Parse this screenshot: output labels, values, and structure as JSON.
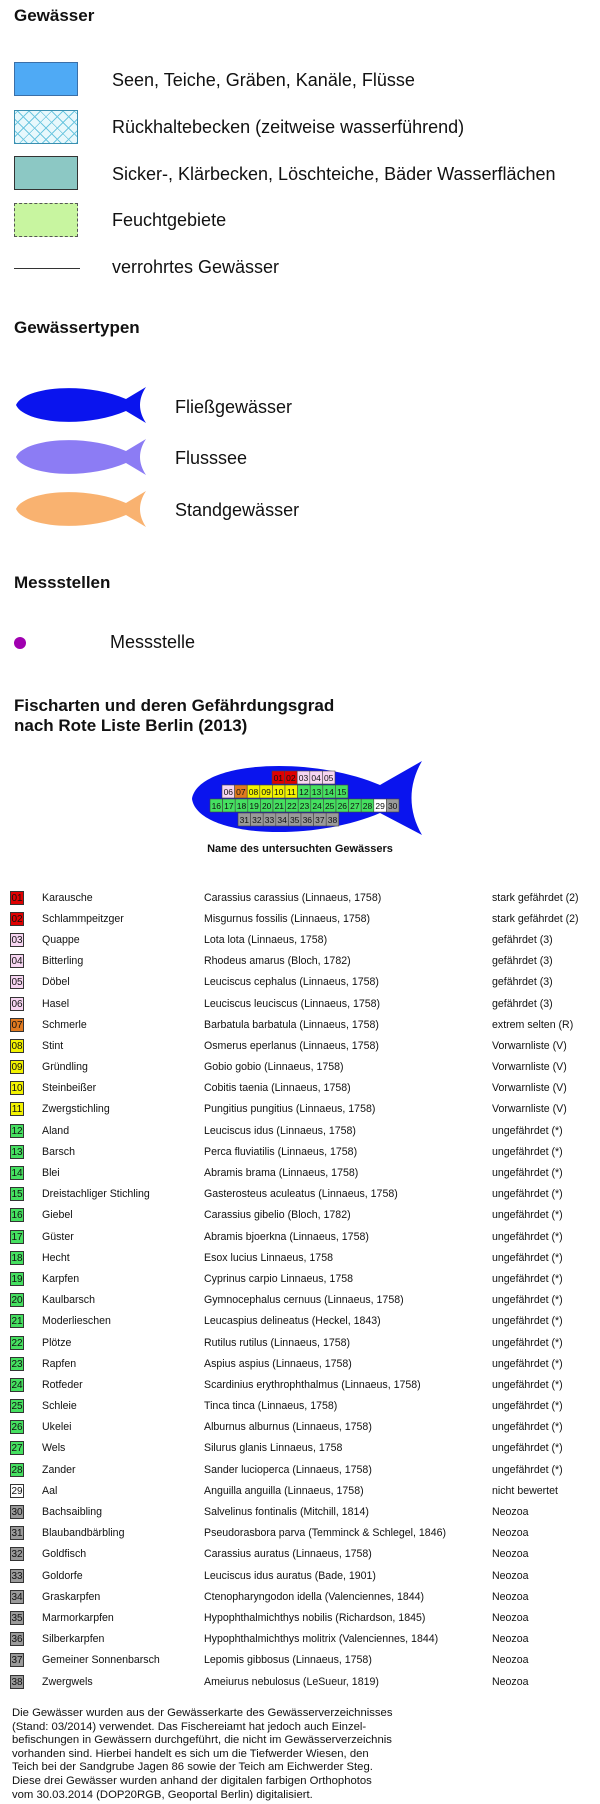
{
  "sections": {
    "waters_title": "Gewässer",
    "types_title": "Gewässertypen",
    "stations_title": "Messstellen",
    "species_title_line1": "Fischarten und deren Gefährdungsgrad",
    "species_title_line2": "nach Rote Liste Berlin (2013)"
  },
  "waters": [
    {
      "label": "Seen, Teiche, Gräben, Kanäle, Flüsse",
      "fill": "#4faaf5",
      "style": "solid"
    },
    {
      "label": "Rückhaltebecken (zeitweise wasserführend)",
      "fill": "#dff5fb",
      "style": "hatch"
    },
    {
      "label": "Sicker-, Klärbecken, Löschteiche, Bäder Wasserflächen",
      "fill": "#8cc8c4",
      "style": "solid"
    },
    {
      "label": "Feuchtgebiete",
      "fill": "#c8f5a0",
      "style": "dashed"
    },
    {
      "label": "verrohrtes Gewässer",
      "fill": "#333333",
      "style": "line"
    }
  ],
  "types": [
    {
      "label": "Fließgewässer",
      "color": "#0a14ee"
    },
    {
      "label": "Flusssee",
      "color": "#8c7cf4"
    },
    {
      "label": "Standgewässer",
      "color": "#f9b270"
    }
  ],
  "station": {
    "label": "Messstelle",
    "color": "#a000b0"
  },
  "schema": {
    "caption": "Name des untersuchten Gewässers",
    "rows": [
      [
        "01",
        "02",
        "03",
        "04",
        "05"
      ],
      [
        "06",
        "07",
        "08",
        "09",
        "10",
        "11",
        "12",
        "13",
        "14",
        "15"
      ],
      [
        "16",
        "17",
        "18",
        "19",
        "20",
        "21",
        "22",
        "23",
        "24",
        "25",
        "26",
        "27",
        "28",
        "29",
        "30"
      ],
      [
        "31",
        "32",
        "33",
        "34",
        "35",
        "36",
        "37",
        "38"
      ]
    ]
  },
  "status_colors": {
    "stark": "#e00000",
    "gefaehrdet": "#f7d6f2",
    "extrem": "#e07a20",
    "vorwarn": "#f2f200",
    "unge": "#45e060",
    "nicht": "#ffffff",
    "neozoa": "#9a9a9a"
  },
  "species": [
    {
      "code": "01",
      "common": "Karausche",
      "latin": "Carassius carassius (Linnaeus, 1758)",
      "status": "stark gefährdet (2)",
      "cat": "stark"
    },
    {
      "code": "02",
      "common": "Schlammpeitzger",
      "latin": "Misgurnus fossilis (Linnaeus, 1758)",
      "status": "stark gefährdet (2)",
      "cat": "stark"
    },
    {
      "code": "03",
      "common": "Quappe",
      "latin": "Lota lota (Linnaeus, 1758)",
      "status": "gefährdet (3)",
      "cat": "gefaehrdet"
    },
    {
      "code": "04",
      "common": "Bitterling",
      "latin": "Rhodeus amarus (Bloch, 1782)",
      "status": "gefährdet (3)",
      "cat": "gefaehrdet"
    },
    {
      "code": "05",
      "common": "Döbel",
      "latin": "Leuciscus cephalus (Linnaeus, 1758)",
      "status": "gefährdet (3)",
      "cat": "gefaehrdet"
    },
    {
      "code": "06",
      "common": "Hasel",
      "latin": "Leuciscus leuciscus (Linnaeus, 1758)",
      "status": "gefährdet (3)",
      "cat": "gefaehrdet"
    },
    {
      "code": "07",
      "common": "Schmerle",
      "latin": "Barbatula barbatula (Linnaeus, 1758)",
      "status": "extrem selten (R)",
      "cat": "extrem"
    },
    {
      "code": "08",
      "common": "Stint",
      "latin": "Osmerus eperlanus (Linnaeus, 1758)",
      "status": "Vorwarnliste (V)",
      "cat": "vorwarn"
    },
    {
      "code": "09",
      "common": "Gründling",
      "latin": "Gobio gobio (Linnaeus, 1758)",
      "status": "Vorwarnliste (V)",
      "cat": "vorwarn"
    },
    {
      "code": "10",
      "common": "Steinbeißer",
      "latin": "Cobitis taenia (Linnaeus, 1758)",
      "status": "Vorwarnliste (V)",
      "cat": "vorwarn"
    },
    {
      "code": "11",
      "common": "Zwergstichling",
      "latin": "Pungitius pungitius (Linnaeus, 1758)",
      "status": "Vorwarnliste (V)",
      "cat": "vorwarn"
    },
    {
      "code": "12",
      "common": "Aland",
      "latin": "Leuciscus idus (Linnaeus, 1758)",
      "status": "ungefährdet (*)",
      "cat": "unge"
    },
    {
      "code": "13",
      "common": "Barsch",
      "latin": "Perca fluviatilis (Linnaeus, 1758)",
      "status": "ungefährdet (*)",
      "cat": "unge"
    },
    {
      "code": "14",
      "common": "Blei",
      "latin": "Abramis brama (Linnaeus, 1758)",
      "status": "ungefährdet (*)",
      "cat": "unge"
    },
    {
      "code": "15",
      "common": "Dreistachliger Stichling",
      "latin": "Gasterosteus aculeatus (Linnaeus, 1758)",
      "status": "ungefährdet (*)",
      "cat": "unge"
    },
    {
      "code": "16",
      "common": "Giebel",
      "latin": "Carassius gibelio (Bloch, 1782)",
      "status": "ungefährdet (*)",
      "cat": "unge"
    },
    {
      "code": "17",
      "common": "Güster",
      "latin": "Abramis bjoerkna (Linnaeus, 1758)",
      "status": "ungefährdet (*)",
      "cat": "unge"
    },
    {
      "code": "18",
      "common": "Hecht",
      "latin": "Esox lucius Linnaeus, 1758",
      "status": "ungefährdet (*)",
      "cat": "unge"
    },
    {
      "code": "19",
      "common": "Karpfen",
      "latin": "Cyprinus carpio Linnaeus, 1758",
      "status": "ungefährdet (*)",
      "cat": "unge"
    },
    {
      "code": "20",
      "common": "Kaulbarsch",
      "latin": "Gymnocephalus cernuus (Linnaeus, 1758)",
      "status": "ungefährdet (*)",
      "cat": "unge"
    },
    {
      "code": "21",
      "common": "Moderlieschen",
      "latin": "Leucaspius delineatus (Heckel, 1843)",
      "status": "ungefährdet (*)",
      "cat": "unge"
    },
    {
      "code": "22",
      "common": "Plötze",
      "latin": "Rutilus rutilus (Linnaeus, 1758)",
      "status": "ungefährdet (*)",
      "cat": "unge"
    },
    {
      "code": "23",
      "common": "Rapfen",
      "latin": "Aspius aspius (Linnaeus, 1758)",
      "status": "ungefährdet (*)",
      "cat": "unge"
    },
    {
      "code": "24",
      "common": "Rotfeder",
      "latin": "Scardinius erythrophthalmus (Linnaeus, 1758)",
      "status": "ungefährdet (*)",
      "cat": "unge"
    },
    {
      "code": "25",
      "common": "Schleie",
      "latin": "Tinca tinca (Linnaeus, 1758)",
      "status": "ungefährdet (*)",
      "cat": "unge"
    },
    {
      "code": "26",
      "common": "Ukelei",
      "latin": "Alburnus alburnus (Linnaeus, 1758)",
      "status": "ungefährdet (*)",
      "cat": "unge"
    },
    {
      "code": "27",
      "common": "Wels",
      "latin": "Silurus glanis Linnaeus, 1758",
      "status": "ungefährdet (*)",
      "cat": "unge"
    },
    {
      "code": "28",
      "common": "Zander",
      "latin": "Sander lucioperca (Linnaeus, 1758)",
      "status": "ungefährdet (*)",
      "cat": "unge"
    },
    {
      "code": "29",
      "common": "Aal",
      "latin": "Anguilla anguilla (Linnaeus, 1758)",
      "status": "nicht bewertet",
      "cat": "nicht"
    },
    {
      "code": "30",
      "common": "Bachsaibling",
      "latin": "Salvelinus fontinalis (Mitchill, 1814)",
      "status": "Neozoa",
      "cat": "neozoa"
    },
    {
      "code": "31",
      "common": "Blaubandbärbling",
      "latin": "Pseudorasbora parva (Temminck & Schlegel, 1846)",
      "status": "Neozoa",
      "cat": "neozoa"
    },
    {
      "code": "32",
      "common": "Goldfisch",
      "latin": "Carassius auratus (Linnaeus, 1758)",
      "status": "Neozoa",
      "cat": "neozoa"
    },
    {
      "code": "33",
      "common": "Goldorfe",
      "latin": "Leuciscus idus auratus (Bade, 1901)",
      "status": "Neozoa",
      "cat": "neozoa"
    },
    {
      "code": "34",
      "common": "Graskarpfen",
      "latin": "Ctenopharyngodon idella (Valenciennes, 1844)",
      "status": "Neozoa",
      "cat": "neozoa"
    },
    {
      "code": "35",
      "common": "Marmorkarpfen",
      "latin": "Hypophthalmichthys nobilis (Richardson, 1845)",
      "status": "Neozoa",
      "cat": "neozoa"
    },
    {
      "code": "36",
      "common": "Silberkarpfen",
      "latin": "Hypophthalmichthys molitrix  (Valenciennes, 1844)",
      "status": "Neozoa",
      "cat": "neozoa"
    },
    {
      "code": "37",
      "common": "Gemeiner Sonnenbarsch",
      "latin": "Lepomis gibbosus (Linnaeus, 1758)",
      "status": "Neozoa",
      "cat": "neozoa"
    },
    {
      "code": "38",
      "common": "Zwergwels",
      "latin": "Ameiurus nebulosus (LeSueur, 1819)",
      "status": "Neozoa",
      "cat": "neozoa"
    }
  ],
  "footnote": [
    "Die Gewässer wurden aus der Gewässerkarte des Gewässerverzeichnisses",
    "(Stand: 03/2014) verwendet. Das Fischereiamt hat jedoch auch Einzel-",
    "befischungen in Gewässern durchgeführt, die nicht im Gewässerverzeichnis",
    "vorhanden sind. Hierbei handelt es sich um die Tiefwerder Wiesen, den",
    "Teich bei der Sandgrube Jagen 86 sowie der Teich am Eichwerder Steg.",
    "Diese drei Gewässer wurden anhand der digitalen farbigen Orthophotos",
    "vom 30.03.2014 (DOP20RGB, Geoportal Berlin) digitalisiert."
  ]
}
